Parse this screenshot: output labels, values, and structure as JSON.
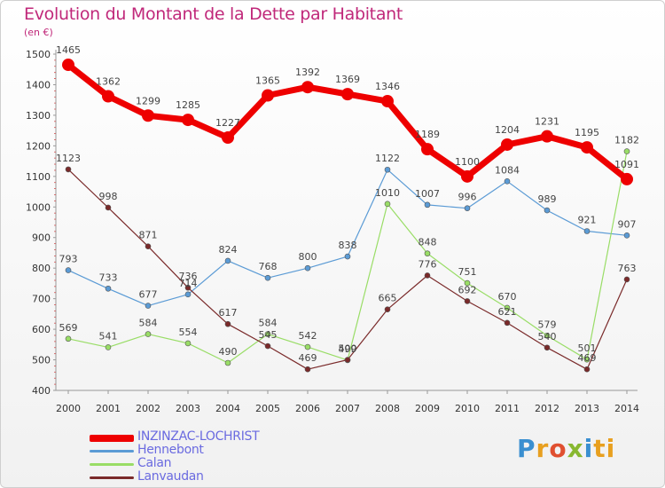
{
  "title": "Evolution du Montant de la Dette par Habitant",
  "unit_label": "(en €)",
  "logo_text": "Proxiti",
  "logo_letters": [
    "P",
    "r",
    "o",
    "x",
    "i",
    "ti"
  ],
  "chart_data": {
    "type": "line",
    "title": "Evolution du Montant de la Dette par Habitant",
    "ylabel": "(en €)",
    "xlabel": "",
    "x": [
      "2000",
      "2001",
      "2002",
      "2003",
      "2004",
      "2005",
      "2006",
      "2007",
      "2008",
      "2009",
      "2010",
      "2011",
      "2012",
      "2013",
      "2014"
    ],
    "ylim": [
      400,
      1500
    ],
    "yticks": [
      400,
      500,
      600,
      700,
      800,
      900,
      1000,
      1100,
      1200,
      1300,
      1400,
      1500
    ],
    "grid": false,
    "legend_position": "bottom-left",
    "series": [
      {
        "name": "INZINZAC-LOCHRIST",
        "color": "#ee0000",
        "width": 7,
        "marker": 7,
        "values": [
          1465,
          1362,
          1299,
          1285,
          1227,
          1365,
          1392,
          1369,
          1346,
          1189,
          1100,
          1204,
          1231,
          1195,
          1091
        ]
      },
      {
        "name": "Hennebont",
        "color": "#5b9bd5",
        "width": 1.2,
        "marker": 3,
        "values": [
          793,
          733,
          677,
          714,
          824,
          768,
          800,
          838,
          1122,
          1007,
          996,
          1084,
          989,
          921,
          907
        ]
      },
      {
        "name": "Calan",
        "color": "#99dd66",
        "width": 1.2,
        "marker": 3,
        "values": [
          569,
          541,
          584,
          554,
          490,
          584,
          542,
          499,
          1010,
          848,
          751,
          670,
          579,
          501,
          1182
        ]
      },
      {
        "name": "Lanvaudan",
        "color": "#7a2a2a",
        "width": 1.2,
        "marker": 3,
        "values": [
          1123,
          998,
          871,
          736,
          617,
          545,
          469,
          500,
          665,
          776,
          692,
          621,
          540,
          469,
          763
        ]
      }
    ]
  }
}
